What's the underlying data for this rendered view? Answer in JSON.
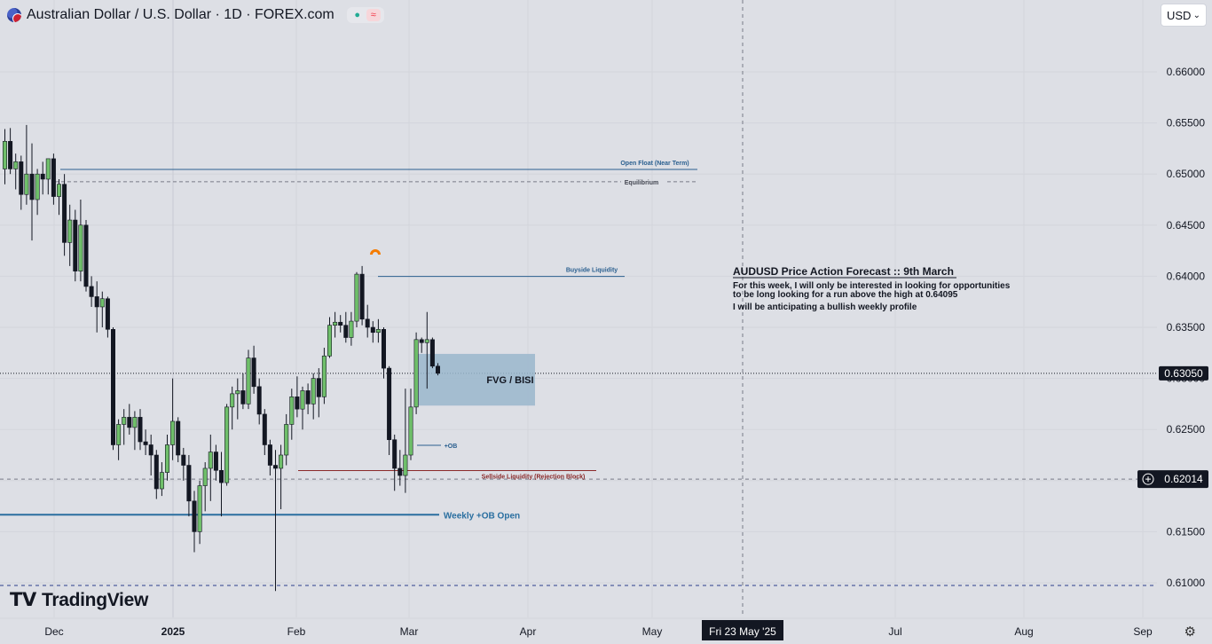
{
  "header": {
    "title": "Australian Dollar / U.S. Dollar · 1D · FOREX.com",
    "currency_select": "USD"
  },
  "logo": {
    "text": "TradingView"
  },
  "colors": {
    "bull": "#6fbf6a",
    "bear": "#131722",
    "blue_line": "#2a5f8f",
    "red_line": "#8b2a2a",
    "fvg_box": "#9ab7cc",
    "navy_dash": "#2c3e8c"
  },
  "chart_data": {
    "type": "candlestick",
    "y_axis": {
      "ticks": [
        0.66,
        0.655,
        0.65,
        0.645,
        0.64,
        0.635,
        0.63,
        0.625,
        0.62,
        0.615,
        0.61
      ],
      "tick_labels": [
        "0.66000",
        "0.65500",
        "0.65000",
        "0.64500",
        "0.64000",
        "0.63500",
        "0.63000",
        "0.62500",
        "0.62000",
        "0.61500",
        "0.61000"
      ],
      "range": [
        0.6064,
        0.6662
      ]
    },
    "x_axis": {
      "labels": [
        "Dec",
        "2025",
        "Feb",
        "Mar",
        "Apr",
        "May",
        "Jul",
        "Aug",
        "Sep"
      ],
      "crosshair_label": "Fri 23 May '25"
    },
    "price_labels": {
      "last": "0.63050",
      "crosshair": "0.62014"
    },
    "candles": [
      {
        "o": 0.6505,
        "h": 0.6544,
        "l": 0.649,
        "c": 0.6532
      },
      {
        "o": 0.6532,
        "h": 0.6545,
        "l": 0.65,
        "c": 0.6505
      },
      {
        "o": 0.6505,
        "h": 0.652,
        "l": 0.6485,
        "c": 0.6512
      },
      {
        "o": 0.6512,
        "h": 0.6518,
        "l": 0.6465,
        "c": 0.648
      },
      {
        "o": 0.648,
        "h": 0.6548,
        "l": 0.647,
        "c": 0.65
      },
      {
        "o": 0.65,
        "h": 0.653,
        "l": 0.6435,
        "c": 0.6475
      },
      {
        "o": 0.6475,
        "h": 0.6505,
        "l": 0.646,
        "c": 0.65
      },
      {
        "o": 0.65,
        "h": 0.6512,
        "l": 0.648,
        "c": 0.6495
      },
      {
        "o": 0.6495,
        "h": 0.6515,
        "l": 0.648,
        "c": 0.6515
      },
      {
        "o": 0.6515,
        "h": 0.652,
        "l": 0.647,
        "c": 0.6478
      },
      {
        "o": 0.6478,
        "h": 0.6495,
        "l": 0.646,
        "c": 0.649
      },
      {
        "o": 0.649,
        "h": 0.65,
        "l": 0.642,
        "c": 0.6433
      },
      {
        "o": 0.6433,
        "h": 0.647,
        "l": 0.641,
        "c": 0.6455
      },
      {
        "o": 0.6455,
        "h": 0.6465,
        "l": 0.6395,
        "c": 0.6405
      },
      {
        "o": 0.6405,
        "h": 0.6475,
        "l": 0.6395,
        "c": 0.645
      },
      {
        "o": 0.645,
        "h": 0.6455,
        "l": 0.6385,
        "c": 0.639
      },
      {
        "o": 0.639,
        "h": 0.64,
        "l": 0.637,
        "c": 0.638
      },
      {
        "o": 0.638,
        "h": 0.6395,
        "l": 0.6345,
        "c": 0.637
      },
      {
        "o": 0.637,
        "h": 0.6385,
        "l": 0.635,
        "c": 0.6378
      },
      {
        "o": 0.6378,
        "h": 0.638,
        "l": 0.634,
        "c": 0.6348
      },
      {
        "o": 0.6348,
        "h": 0.635,
        "l": 0.623,
        "c": 0.6235
      },
      {
        "o": 0.6235,
        "h": 0.626,
        "l": 0.622,
        "c": 0.6255
      },
      {
        "o": 0.6255,
        "h": 0.627,
        "l": 0.6235,
        "c": 0.6262
      },
      {
        "o": 0.6262,
        "h": 0.6275,
        "l": 0.6245,
        "c": 0.6252
      },
      {
        "o": 0.6252,
        "h": 0.6268,
        "l": 0.623,
        "c": 0.6262
      },
      {
        "o": 0.6262,
        "h": 0.627,
        "l": 0.623,
        "c": 0.6238
      },
      {
        "o": 0.6238,
        "h": 0.625,
        "l": 0.6225,
        "c": 0.6235
      },
      {
        "o": 0.6235,
        "h": 0.6245,
        "l": 0.6205,
        "c": 0.6225
      },
      {
        "o": 0.6225,
        "h": 0.623,
        "l": 0.6182,
        "c": 0.6192
      },
      {
        "o": 0.6192,
        "h": 0.6218,
        "l": 0.6185,
        "c": 0.6208
      },
      {
        "o": 0.6208,
        "h": 0.6245,
        "l": 0.62,
        "c": 0.6235
      },
      {
        "o": 0.6235,
        "h": 0.63,
        "l": 0.622,
        "c": 0.6258
      },
      {
        "o": 0.6258,
        "h": 0.6262,
        "l": 0.6218,
        "c": 0.6225
      },
      {
        "o": 0.6225,
        "h": 0.6232,
        "l": 0.62,
        "c": 0.6215
      },
      {
        "o": 0.6215,
        "h": 0.6225,
        "l": 0.6165,
        "c": 0.618
      },
      {
        "o": 0.618,
        "h": 0.619,
        "l": 0.613,
        "c": 0.615
      },
      {
        "o": 0.615,
        "h": 0.62,
        "l": 0.6138,
        "c": 0.6195
      },
      {
        "o": 0.6195,
        "h": 0.6218,
        "l": 0.617,
        "c": 0.6212
      },
      {
        "o": 0.6212,
        "h": 0.6245,
        "l": 0.618,
        "c": 0.6228
      },
      {
        "o": 0.6228,
        "h": 0.6235,
        "l": 0.62,
        "c": 0.621
      },
      {
        "o": 0.621,
        "h": 0.6228,
        "l": 0.6165,
        "c": 0.6198
      },
      {
        "o": 0.6198,
        "h": 0.6275,
        "l": 0.6195,
        "c": 0.6272
      },
      {
        "o": 0.6272,
        "h": 0.6292,
        "l": 0.625,
        "c": 0.6285
      },
      {
        "o": 0.6285,
        "h": 0.63,
        "l": 0.626,
        "c": 0.6288
      },
      {
        "o": 0.6288,
        "h": 0.6305,
        "l": 0.627,
        "c": 0.6275
      },
      {
        "o": 0.6275,
        "h": 0.6328,
        "l": 0.627,
        "c": 0.632
      },
      {
        "o": 0.632,
        "h": 0.6332,
        "l": 0.6285,
        "c": 0.6292
      },
      {
        "o": 0.6292,
        "h": 0.63,
        "l": 0.6255,
        "c": 0.6265
      },
      {
        "o": 0.6265,
        "h": 0.627,
        "l": 0.6225,
        "c": 0.6235
      },
      {
        "o": 0.6235,
        "h": 0.624,
        "l": 0.6205,
        "c": 0.6215
      },
      {
        "o": 0.6215,
        "h": 0.623,
        "l": 0.6092,
        "c": 0.6212
      },
      {
        "o": 0.6212,
        "h": 0.6235,
        "l": 0.6172,
        "c": 0.6225
      },
      {
        "o": 0.6225,
        "h": 0.6265,
        "l": 0.6215,
        "c": 0.6255
      },
      {
        "o": 0.6255,
        "h": 0.629,
        "l": 0.624,
        "c": 0.6282
      },
      {
        "o": 0.6282,
        "h": 0.6302,
        "l": 0.6262,
        "c": 0.627
      },
      {
        "o": 0.627,
        "h": 0.6292,
        "l": 0.625,
        "c": 0.6288
      },
      {
        "o": 0.6288,
        "h": 0.6295,
        "l": 0.6265,
        "c": 0.6275
      },
      {
        "o": 0.6275,
        "h": 0.6305,
        "l": 0.626,
        "c": 0.63
      },
      {
        "o": 0.63,
        "h": 0.631,
        "l": 0.6262,
        "c": 0.6282
      },
      {
        "o": 0.6282,
        "h": 0.633,
        "l": 0.6275,
        "c": 0.6322
      },
      {
        "o": 0.6322,
        "h": 0.636,
        "l": 0.632,
        "c": 0.6352
      },
      {
        "o": 0.6352,
        "h": 0.6365,
        "l": 0.634,
        "c": 0.6355
      },
      {
        "o": 0.6355,
        "h": 0.6362,
        "l": 0.6345,
        "c": 0.6352
      },
      {
        "o": 0.6352,
        "h": 0.6365,
        "l": 0.6335,
        "c": 0.634
      },
      {
        "o": 0.634,
        "h": 0.6365,
        "l": 0.6332,
        "c": 0.6356
      },
      {
        "o": 0.6356,
        "h": 0.6404,
        "l": 0.635,
        "c": 0.6402
      },
      {
        "o": 0.6402,
        "h": 0.641,
        "l": 0.6352,
        "c": 0.6358
      },
      {
        "o": 0.6358,
        "h": 0.6372,
        "l": 0.634,
        "c": 0.635
      },
      {
        "o": 0.635,
        "h": 0.6356,
        "l": 0.6335,
        "c": 0.6345
      },
      {
        "o": 0.6345,
        "h": 0.6358,
        "l": 0.6335,
        "c": 0.6348
      },
      {
        "o": 0.6348,
        "h": 0.635,
        "l": 0.63,
        "c": 0.631
      },
      {
        "o": 0.631,
        "h": 0.6312,
        "l": 0.6225,
        "c": 0.624
      },
      {
        "o": 0.624,
        "h": 0.6245,
        "l": 0.619,
        "c": 0.6212
      },
      {
        "o": 0.6212,
        "h": 0.623,
        "l": 0.6195,
        "c": 0.6205
      },
      {
        "o": 0.6205,
        "h": 0.629,
        "l": 0.6188,
        "c": 0.6225
      },
      {
        "o": 0.6225,
        "h": 0.629,
        "l": 0.622,
        "c": 0.6272
      },
      {
        "o": 0.6272,
        "h": 0.6345,
        "l": 0.6265,
        "c": 0.6338
      },
      {
        "o": 0.6338,
        "h": 0.634,
        "l": 0.6325,
        "c": 0.6335
      },
      {
        "o": 0.6335,
        "h": 0.6365,
        "l": 0.629,
        "c": 0.6338
      },
      {
        "o": 0.6338,
        "h": 0.634,
        "l": 0.631,
        "c": 0.6312
      },
      {
        "o": 0.6312,
        "h": 0.6315,
        "l": 0.6303,
        "c": 0.6305
      }
    ],
    "levels": [
      {
        "name": "Open Float (Near Term)",
        "price": 0.65045,
        "x_from": 68,
        "x_to": 786,
        "style": "solid",
        "color": "#2a5f8f"
      },
      {
        "name": "Equilibrium",
        "price": 0.64925,
        "x_from": 62,
        "x_to": 700,
        "style": "dashed",
        "color": "#787b86"
      },
      {
        "name": "Buyside Liquidity",
        "price": 0.63998,
        "x_from": 426,
        "x_to": 704,
        "style": "solid",
        "color": "#2a5f8f"
      },
      {
        "name": "+OB",
        "price": 0.62346,
        "x_from": 470,
        "x_to": 497,
        "style": "solid",
        "color": "#2a5f8f"
      },
      {
        "name": "Sellside Liquidity (Rejection Block)",
        "price": 0.62098,
        "x_from": 336,
        "x_to": 672,
        "style": "solid",
        "color": "#8b2a2a"
      },
      {
        "name": "Weekly +OB Open",
        "price": 0.61666,
        "x_from": 0,
        "x_to": 495,
        "style": "solid",
        "color": "#2a6fa0"
      }
    ],
    "zone": {
      "label": "FVG / BISI",
      "price_top": 0.6324,
      "price_bottom": 0.62734
    },
    "annotation": {
      "title": "AUDUSD Price Action Forecast  ::  9th March",
      "lines": [
        "For this week, I will only be interested in looking for opportunities",
        "to be long looking for a run above the high at 0.64095",
        "I will be anticipating a bullish weekly profile"
      ]
    }
  }
}
